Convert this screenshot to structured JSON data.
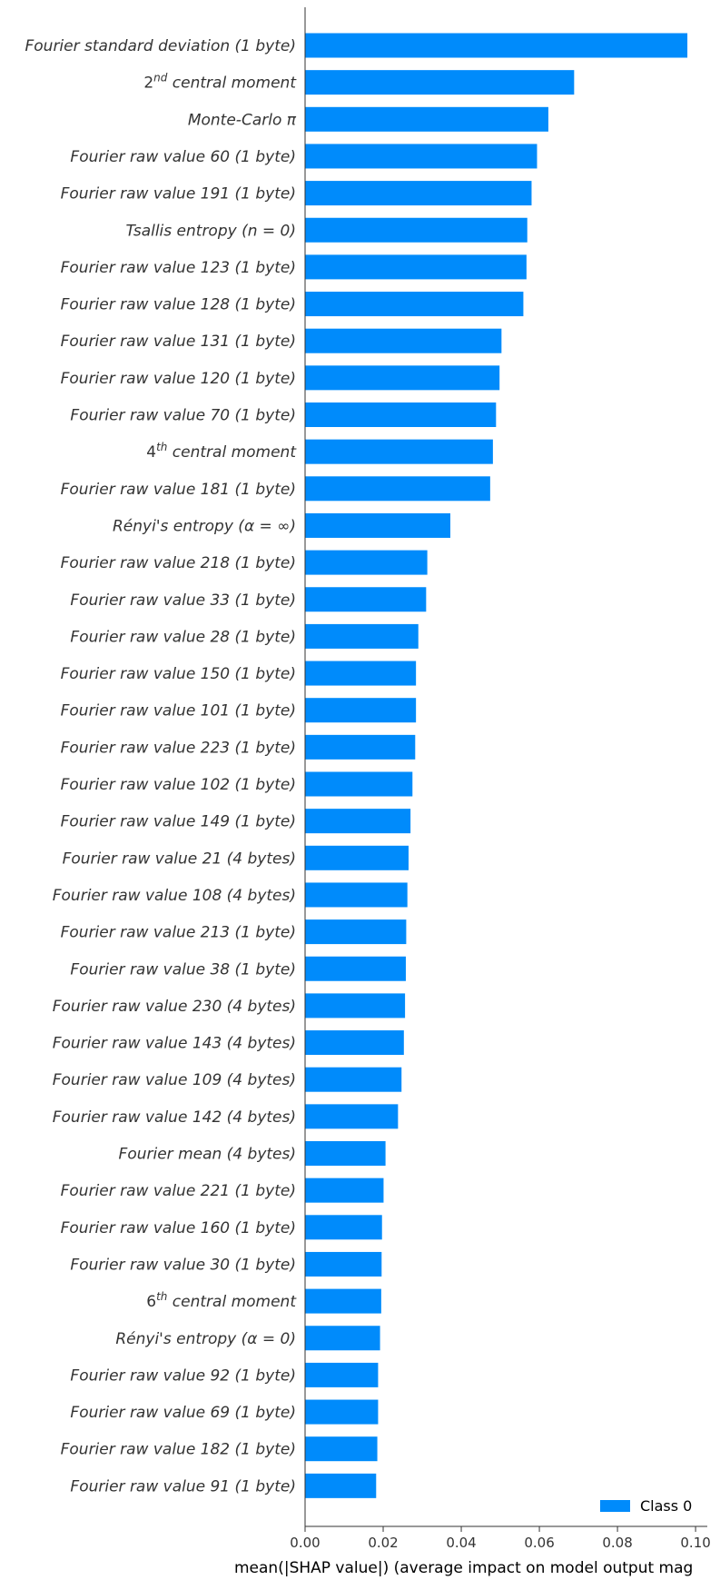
{
  "chart_data": {
    "type": "bar",
    "orientation": "horizontal",
    "categories": [
      "Fourier standard deviation (1 byte)",
      "2nd central moment",
      "Monte-Carlo π",
      "Fourier raw value 60 (1 byte)",
      "Fourier raw value 191 (1 byte)",
      "Tsallis entropy (n = 0)",
      "Fourier raw value 123 (1 byte)",
      "Fourier raw value 128 (1 byte)",
      "Fourier raw value 131 (1 byte)",
      "Fourier raw value 120 (1 byte)",
      "Fourier raw value 70 (1 byte)",
      "4th central moment",
      "Fourier raw value 181 (1 byte)",
      "Rényi's entropy (α = ∞)",
      "Fourier raw value 218 (1 byte)",
      "Fourier raw value 33 (1 byte)",
      "Fourier raw value 28 (1 byte)",
      "Fourier raw value 150 (1 byte)",
      "Fourier raw value 101 (1 byte)",
      "Fourier raw value 223 (1 byte)",
      "Fourier raw value 102 (1 byte)",
      "Fourier raw value 149 (1 byte)",
      "Fourier raw value 21 (4 bytes)",
      "Fourier raw value 108 (4 bytes)",
      "Fourier raw value 213 (1 byte)",
      "Fourier raw value 38 (1 byte)",
      "Fourier raw value 230 (4 bytes)",
      "Fourier raw value 143 (4 bytes)",
      "Fourier raw value 109 (4 bytes)",
      "Fourier raw value 142 (4 bytes)",
      "Fourier mean (4 bytes)",
      "Fourier raw value 221 (1 byte)",
      "Fourier raw value 160 (1 byte)",
      "Fourier raw value 30 (1 byte)",
      "6th central moment",
      "Rényi's entropy (α = 0)",
      "Fourier raw value 92 (1 byte)",
      "Fourier raw value 69 (1 byte)",
      "Fourier raw value 182 (1 byte)",
      "Fourier raw value 91 (1 byte)"
    ],
    "series": [
      {
        "name": "Class 0",
        "color": "#008bfb",
        "values": [
          0.0979,
          0.0689,
          0.0623,
          0.0594,
          0.058,
          0.0569,
          0.0567,
          0.0559,
          0.0503,
          0.0498,
          0.0489,
          0.0481,
          0.0474,
          0.0372,
          0.0313,
          0.031,
          0.029,
          0.0284,
          0.0284,
          0.0282,
          0.0275,
          0.027,
          0.0265,
          0.0262,
          0.0259,
          0.0258,
          0.0256,
          0.0253,
          0.0247,
          0.0238,
          0.0206,
          0.0201,
          0.0197,
          0.0196,
          0.0195,
          0.0192,
          0.0187,
          0.0187,
          0.0185,
          0.0182
        ]
      }
    ],
    "xlabel": "mean(|SHAP value|) (average impact on model output mag",
    "xlim": [
      0,
      0.103
    ],
    "xticks": [
      "0.00",
      "0.02",
      "0.04",
      "0.06",
      "0.08",
      "0.10"
    ],
    "legend": {
      "position": "bottom-right",
      "entries": [
        "Class 0"
      ]
    },
    "grid": false
  }
}
